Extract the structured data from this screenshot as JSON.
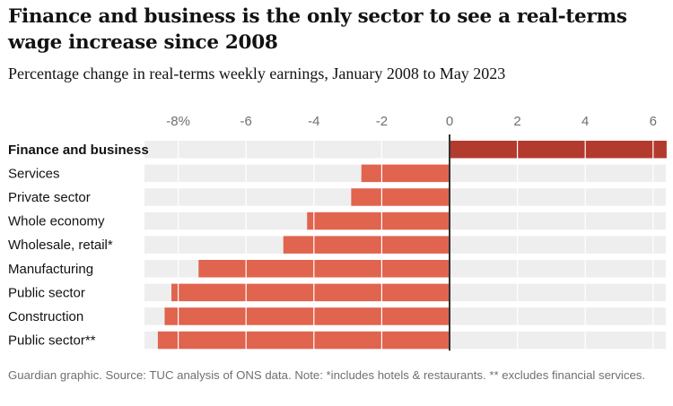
{
  "title": "Finance and business is the only sector to see a real-terms wage increase since 2008",
  "subtitle": "Percentage change in real-terms weekly earnings, January 2008 to May 2023",
  "footnote": "Guardian graphic. Source: TUC analysis of ONS data. Note: *includes hotels & restaurants. ** excludes financial services.",
  "chart_data": {
    "type": "bar",
    "orientation": "horizontal",
    "title": "Finance and business is the only sector to see a real-terms wage increase since 2008",
    "subtitle": "Percentage change in real-terms weekly earnings, January 2008 to May 2023",
    "xlabel": "",
    "ylabel": "",
    "xlim": [
      -9,
      6.5
    ],
    "ticks": [
      -8,
      -6,
      -4,
      -2,
      0,
      2,
      4,
      6
    ],
    "tick_labels": [
      "-8%",
      "-6",
      "-4",
      "-2",
      "0",
      "2",
      "4",
      "6"
    ],
    "grid": true,
    "categories": [
      "Finance and business",
      "Services",
      "Private sector",
      "Whole economy",
      "Wholesale, retail*",
      "Manufacturing",
      "Public sector",
      "Construction",
      "Public sector**"
    ],
    "values": [
      6.4,
      -2.6,
      -2.9,
      -4.2,
      -4.9,
      -7.4,
      -8.2,
      -8.4,
      -8.6
    ],
    "highlight_category": "Finance and business",
    "colors": {
      "positive": "#b33b2e",
      "negative": "#e0644e",
      "track": "#eeeeee",
      "zero_line": "#333333",
      "grid": "#ffffff"
    }
  }
}
